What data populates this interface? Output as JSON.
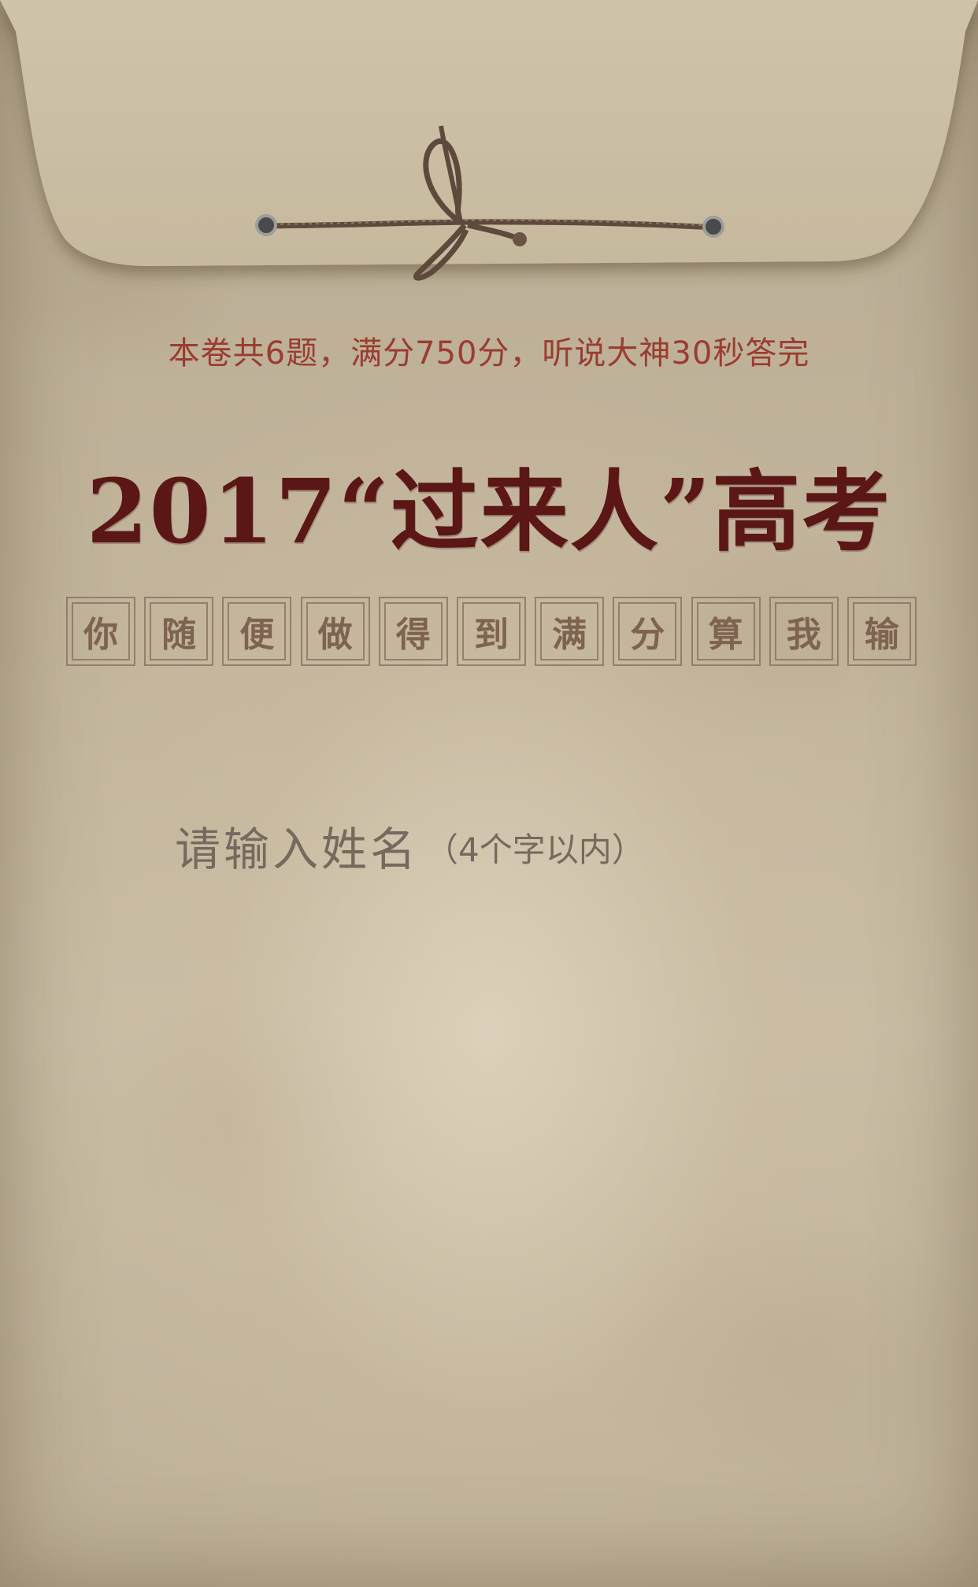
{
  "header": {
    "subtitle": "本卷共6题，满分750分，听说大神30秒答完",
    "title": "2017“过来人”高考"
  },
  "stamps": [
    "你",
    "随",
    "便",
    "做",
    "得",
    "到",
    "满",
    "分",
    "算",
    "我",
    "输"
  ],
  "name_input": {
    "placeholder": "请输入姓名",
    "hint": "（4个字以内）"
  },
  "colors": {
    "subtitle": "#9b3c30",
    "title": "#5b1616",
    "stamp_text": "#7d6350",
    "placeholder": "#766a5e"
  }
}
